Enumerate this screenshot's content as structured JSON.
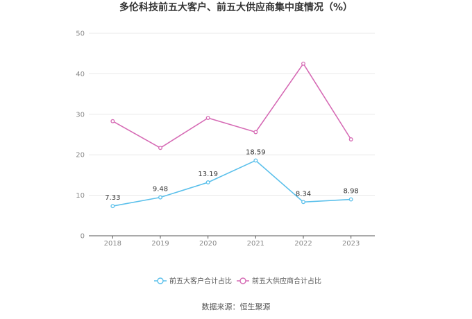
{
  "chart_data": {
    "type": "line",
    "title": "多伦科技前五大客户、前五大供应商集中度情况（%）",
    "categories": [
      "2018",
      "2019",
      "2020",
      "2021",
      "2022",
      "2023"
    ],
    "ylim": [
      0,
      50
    ],
    "yticks": [
      "0",
      "10",
      "20",
      "30",
      "40",
      "50"
    ],
    "grid": true,
    "legend_position": "bottom",
    "series": [
      {
        "name": "前五大客户合计占比",
        "color": "#5bc0eb",
        "values": [
          7.33,
          9.48,
          13.19,
          18.59,
          8.34,
          8.98
        ],
        "labels": [
          "7.33",
          "9.48",
          "13.19",
          "18.59",
          "8.34",
          "8.98"
        ]
      },
      {
        "name": "前五大供应商合计占比",
        "color": "#d66bb5",
        "values": [
          28.3,
          21.7,
          29.1,
          25.6,
          42.5,
          23.8
        ]
      }
    ],
    "source": "数据来源：恒生聚源"
  }
}
